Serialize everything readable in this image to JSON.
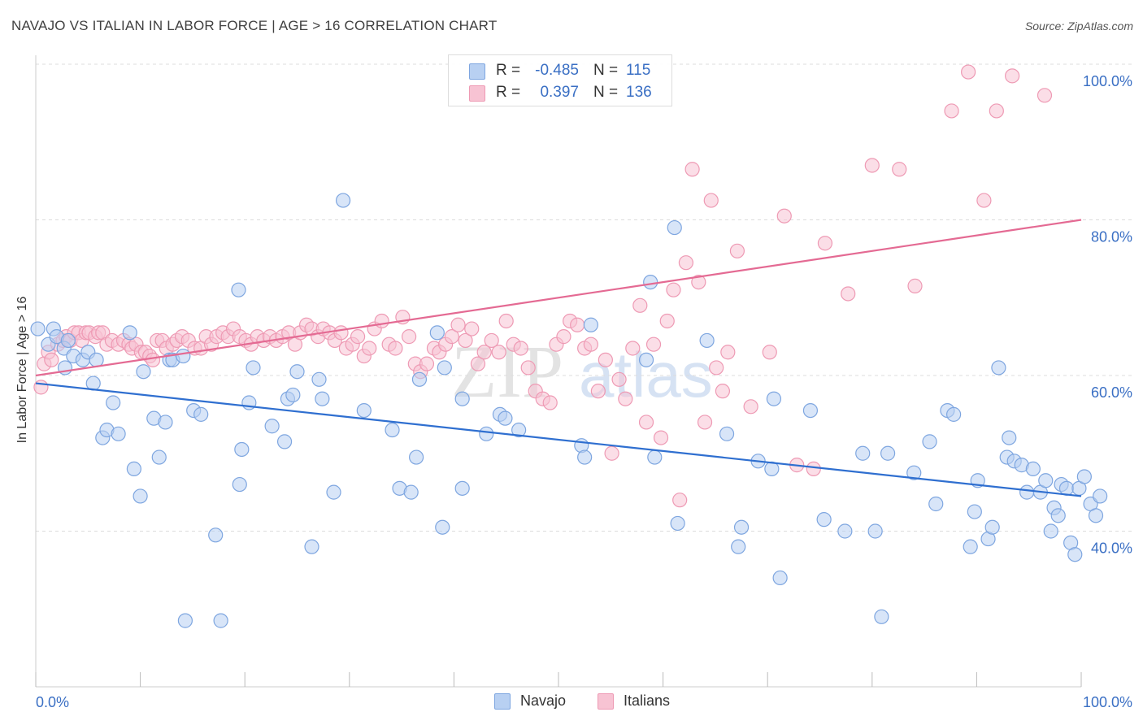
{
  "title": "NAVAJO VS ITALIAN IN LABOR FORCE | AGE > 16 CORRELATION CHART",
  "source": "Source: ZipAtlas.com",
  "watermark": {
    "zip": "ZIP",
    "atlas": "atlas"
  },
  "stats": {
    "r_label": "R =",
    "n_label": "N =",
    "navajo": {
      "r": "-0.485",
      "n": "115"
    },
    "italians": {
      "r": "0.397",
      "n": "136"
    }
  },
  "legend": {
    "navajo": "Navajo",
    "italians": "Italians"
  },
  "colors": {
    "navajo_fill": "#b8d0f2",
    "navajo_stroke": "#7ea6e0",
    "navajo_line": "#2f6fd0",
    "italians_fill": "#f7c3d3",
    "italians_stroke": "#ee9ab4",
    "italians_line": "#e46a93",
    "tick_label": "#3a6fc4"
  },
  "chart_data": {
    "type": "scatter",
    "title": "NAVAJO VS ITALIAN IN LABOR FORCE | AGE > 16 CORRELATION CHART",
    "xlabel": "",
    "ylabel": "In Labor Force | Age > 16",
    "xlim": [
      0,
      100
    ],
    "ylim": [
      20,
      100
    ],
    "x_tick_labels": [
      "0.0%",
      "100.0%"
    ],
    "y_ticks": [
      40,
      60,
      80,
      100
    ],
    "y_tick_labels": [
      "40.0%",
      "60.0%",
      "80.0%",
      "100.0%"
    ],
    "grid": "horizontal dashed",
    "legend_position": "bottom-center",
    "series": [
      {
        "name": "Navajo",
        "r": -0.485,
        "n": 115,
        "trend": {
          "x": [
            0,
            100
          ],
          "y": [
            59.0,
            44.5
          ]
        },
        "points": [
          [
            0.2,
            66
          ],
          [
            1.2,
            64
          ],
          [
            1.7,
            66
          ],
          [
            2,
            65
          ],
          [
            2.7,
            63.5
          ],
          [
            2.8,
            61
          ],
          [
            3.1,
            64.5
          ],
          [
            3.6,
            62.5
          ],
          [
            4.5,
            62
          ],
          [
            5,
            63
          ],
          [
            5.5,
            59
          ],
          [
            5.8,
            62
          ],
          [
            6.4,
            52
          ],
          [
            6.8,
            53
          ],
          [
            7.4,
            56.5
          ],
          [
            7.9,
            52.5
          ],
          [
            9,
            65.5
          ],
          [
            9.4,
            48
          ],
          [
            10,
            44.5
          ],
          [
            10.3,
            60.5
          ],
          [
            11.3,
            54.5
          ],
          [
            11.8,
            49.5
          ],
          [
            12.4,
            54
          ],
          [
            12.8,
            62
          ],
          [
            13.1,
            62
          ],
          [
            14.1,
            62.5
          ],
          [
            14.3,
            28.5
          ],
          [
            15.1,
            55.5
          ],
          [
            15.8,
            55
          ],
          [
            17.2,
            39.5
          ],
          [
            17.7,
            28.5
          ],
          [
            19.4,
            71
          ],
          [
            19.5,
            46
          ],
          [
            19.7,
            50.5
          ],
          [
            20.4,
            56.5
          ],
          [
            20.8,
            61
          ],
          [
            22.6,
            53.5
          ],
          [
            23.8,
            51.5
          ],
          [
            24.1,
            57
          ],
          [
            24.6,
            57.5
          ],
          [
            25,
            60.5
          ],
          [
            26.4,
            38
          ],
          [
            27.1,
            59.5
          ],
          [
            27.4,
            57
          ],
          [
            28.5,
            45
          ],
          [
            29.4,
            82.5
          ],
          [
            31.4,
            55.5
          ],
          [
            34.1,
            53
          ],
          [
            34.8,
            45.5
          ],
          [
            35.9,
            45
          ],
          [
            36.4,
            49.5
          ],
          [
            36.7,
            59.5
          ],
          [
            38.4,
            65.5
          ],
          [
            38.9,
            40.5
          ],
          [
            39.1,
            61
          ],
          [
            40.8,
            57
          ],
          [
            40.8,
            45.5
          ],
          [
            43.1,
            52.5
          ],
          [
            44.4,
            55
          ],
          [
            44.9,
            54.5
          ],
          [
            46.2,
            53
          ],
          [
            52.2,
            51
          ],
          [
            52.5,
            49.5
          ],
          [
            53.1,
            66.5
          ],
          [
            58.4,
            62
          ],
          [
            58.8,
            72
          ],
          [
            59.2,
            49.5
          ],
          [
            61.1,
            79
          ],
          [
            61.4,
            41
          ],
          [
            64.2,
            64.5
          ],
          [
            66.1,
            52.5
          ],
          [
            67.2,
            38
          ],
          [
            67.5,
            40.5
          ],
          [
            69.1,
            49
          ],
          [
            70.4,
            48
          ],
          [
            70.6,
            57
          ],
          [
            71.2,
            34
          ],
          [
            74.1,
            55.5
          ],
          [
            75.4,
            41.5
          ],
          [
            77.4,
            40
          ],
          [
            79.1,
            50
          ],
          [
            80.3,
            40
          ],
          [
            80.9,
            29
          ],
          [
            81.5,
            50
          ],
          [
            84,
            47.5
          ],
          [
            85.5,
            51.5
          ],
          [
            86.1,
            43.5
          ],
          [
            87.2,
            55.5
          ],
          [
            87.8,
            55
          ],
          [
            89.4,
            38
          ],
          [
            89.8,
            42.5
          ],
          [
            90.1,
            46.5
          ],
          [
            91.1,
            39
          ],
          [
            91.5,
            40.5
          ],
          [
            92.1,
            61
          ],
          [
            92.9,
            49.5
          ],
          [
            93.1,
            52
          ],
          [
            93.6,
            49
          ],
          [
            94.3,
            48.5
          ],
          [
            94.8,
            45
          ],
          [
            95.4,
            48
          ],
          [
            96.1,
            45
          ],
          [
            96.6,
            46.5
          ],
          [
            97.1,
            40
          ],
          [
            97.4,
            43
          ],
          [
            97.8,
            42
          ],
          [
            98.1,
            46
          ],
          [
            98.6,
            45.5
          ],
          [
            99,
            38.5
          ],
          [
            99.4,
            37
          ],
          [
            99.8,
            45.5
          ],
          [
            100.3,
            47
          ],
          [
            100.9,
            43.5
          ],
          [
            101.4,
            42
          ],
          [
            101.8,
            44.5
          ]
        ]
      },
      {
        "name": "Italians",
        "r": 0.397,
        "n": 136,
        "trend": {
          "x": [
            0,
            100
          ],
          "y": [
            60.0,
            80.0
          ]
        },
        "points": [
          [
            0.5,
            58.5
          ],
          [
            0.8,
            61.5
          ],
          [
            1.2,
            63
          ],
          [
            1.5,
            62
          ],
          [
            2.1,
            64
          ],
          [
            2.6,
            64.5
          ],
          [
            2.9,
            65
          ],
          [
            3.3,
            64.5
          ],
          [
            3.7,
            65.5
          ],
          [
            4.1,
            65.5
          ],
          [
            4.4,
            64.5
          ],
          [
            4.8,
            65.5
          ],
          [
            5.1,
            65.5
          ],
          [
            5.7,
            65
          ],
          [
            6,
            65.5
          ],
          [
            6.4,
            65.5
          ],
          [
            6.8,
            64
          ],
          [
            7.3,
            64.5
          ],
          [
            7.9,
            64
          ],
          [
            8.4,
            64.5
          ],
          [
            8.9,
            64
          ],
          [
            9.2,
            63.5
          ],
          [
            9.6,
            64
          ],
          [
            10.1,
            63
          ],
          [
            10.5,
            63
          ],
          [
            10.9,
            62.5
          ],
          [
            11.2,
            62
          ],
          [
            11.6,
            64.5
          ],
          [
            12.1,
            64.5
          ],
          [
            12.5,
            63.5
          ],
          [
            13.1,
            64
          ],
          [
            13.5,
            64.5
          ],
          [
            14,
            65
          ],
          [
            14.6,
            64.5
          ],
          [
            15.2,
            63.5
          ],
          [
            15.8,
            63.5
          ],
          [
            16.3,
            65
          ],
          [
            16.8,
            64
          ],
          [
            17.3,
            65
          ],
          [
            17.9,
            65.5
          ],
          [
            18.4,
            65
          ],
          [
            18.9,
            66
          ],
          [
            19.5,
            65
          ],
          [
            20.1,
            64.5
          ],
          [
            20.6,
            64
          ],
          [
            21.2,
            65
          ],
          [
            21.8,
            64.5
          ],
          [
            22.4,
            65
          ],
          [
            23,
            64.5
          ],
          [
            23.6,
            65
          ],
          [
            24.2,
            65.5
          ],
          [
            24.8,
            64
          ],
          [
            25.3,
            65.5
          ],
          [
            25.9,
            66.5
          ],
          [
            26.4,
            66
          ],
          [
            27,
            65
          ],
          [
            27.5,
            66
          ],
          [
            28.1,
            65.5
          ],
          [
            28.6,
            64.5
          ],
          [
            29.2,
            65.5
          ],
          [
            29.7,
            63.5
          ],
          [
            30.3,
            64
          ],
          [
            30.8,
            65
          ],
          [
            31.4,
            62.5
          ],
          [
            31.9,
            63.5
          ],
          [
            32.4,
            66
          ],
          [
            33.1,
            67
          ],
          [
            33.8,
            64
          ],
          [
            34.4,
            63.5
          ],
          [
            35.1,
            67.5
          ],
          [
            35.7,
            65
          ],
          [
            36.3,
            61.5
          ],
          [
            36.8,
            60.5
          ],
          [
            37.4,
            61.5
          ],
          [
            38.1,
            63.5
          ],
          [
            38.6,
            63
          ],
          [
            39.2,
            64
          ],
          [
            39.8,
            65
          ],
          [
            40.4,
            66.5
          ],
          [
            41.1,
            64.5
          ],
          [
            41.7,
            66
          ],
          [
            42.3,
            61.5
          ],
          [
            42.9,
            63
          ],
          [
            43.6,
            64.5
          ],
          [
            44.3,
            63
          ],
          [
            45,
            67
          ],
          [
            45.7,
            64
          ],
          [
            46.4,
            63.5
          ],
          [
            47.1,
            61
          ],
          [
            47.8,
            58
          ],
          [
            48.5,
            57
          ],
          [
            49.2,
            56.5
          ],
          [
            49.8,
            64
          ],
          [
            50.5,
            65
          ],
          [
            51.1,
            67
          ],
          [
            51.8,
            66.5
          ],
          [
            52.5,
            63.5
          ],
          [
            53.1,
            64
          ],
          [
            53.8,
            58
          ],
          [
            54.5,
            62
          ],
          [
            55.1,
            50
          ],
          [
            55.8,
            59.5
          ],
          [
            56.4,
            57
          ],
          [
            57.1,
            63.5
          ],
          [
            57.8,
            69
          ],
          [
            58.4,
            54
          ],
          [
            59.1,
            64
          ],
          [
            59.8,
            52
          ],
          [
            60.4,
            67
          ],
          [
            61,
            71
          ],
          [
            61.6,
            44
          ],
          [
            62.2,
            74.5
          ],
          [
            62.8,
            86.5
          ],
          [
            63.4,
            72
          ],
          [
            64,
            54
          ],
          [
            64.6,
            82.5
          ],
          [
            65.1,
            61
          ],
          [
            65.7,
            58
          ],
          [
            66.2,
            63
          ],
          [
            67.1,
            76
          ],
          [
            68.4,
            56
          ],
          [
            70.2,
            63
          ],
          [
            71.6,
            80.5
          ],
          [
            72.8,
            48.5
          ],
          [
            74.4,
            48
          ],
          [
            75.5,
            77
          ],
          [
            77.7,
            70.5
          ],
          [
            80,
            87
          ],
          [
            82.6,
            86.5
          ],
          [
            84.1,
            71.5
          ],
          [
            87.6,
            94
          ],
          [
            89.2,
            99
          ],
          [
            90.7,
            82.5
          ],
          [
            91.9,
            94
          ],
          [
            93.4,
            98.5
          ],
          [
            96.5,
            96
          ]
        ]
      }
    ]
  }
}
